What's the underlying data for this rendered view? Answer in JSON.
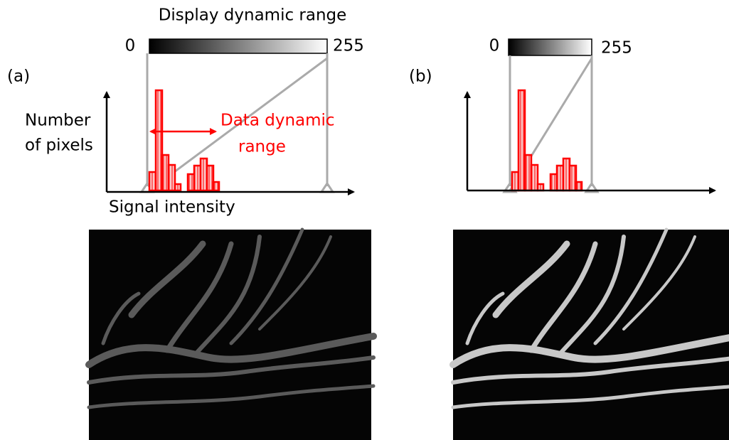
{
  "panel_a": {
    "label": "(a)",
    "title": "Display dynamic range",
    "range_min": "0",
    "range_max": "255",
    "y_axis_label_lines": [
      "Number",
      "of pixels"
    ],
    "data_range_label_lines": [
      "Data dynamic",
      "range"
    ],
    "x_axis_label": "Signal intensity"
  },
  "panel_b": {
    "label": "(b)",
    "range_min": "0",
    "range_max": "255"
  }
}
